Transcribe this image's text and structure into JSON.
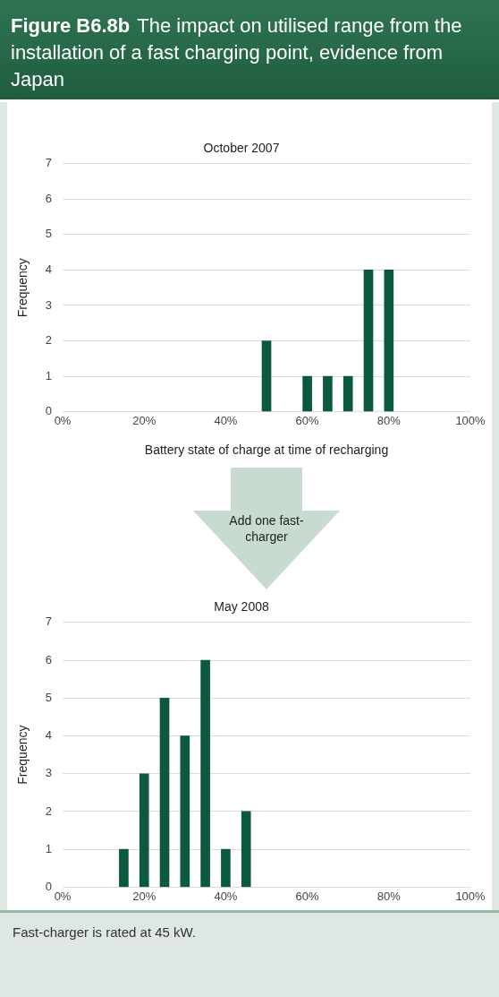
{
  "chart_data": [
    {
      "type": "bar",
      "title": "October 2007",
      "xlabel": "Battery state of charge at time of recharging",
      "ylabel": "Frequency",
      "x": [
        50,
        60,
        65,
        70,
        75,
        80
      ],
      "values": [
        2,
        1,
        1,
        1,
        4,
        4
      ],
      "color": "#0b5a3e",
      "xlim": [
        0,
        100
      ],
      "xticks": [
        {
          "value": 0,
          "label": "0%"
        },
        {
          "value": 20,
          "label": "20%"
        },
        {
          "value": 40,
          "label": "40%"
        },
        {
          "value": 60,
          "label": "60%"
        },
        {
          "value": 80,
          "label": "80%"
        },
        {
          "value": 100,
          "label": "100%"
        }
      ],
      "ylim": [
        0,
        7
      ],
      "yticks": [
        0,
        1,
        2,
        3,
        4,
        5,
        6,
        7
      ],
      "grid": "y",
      "annotations": [
        "Figure B6.8b",
        "The impact on utilised range from the installation of a fast charging point, evidence from Japan"
      ]
    },
    {
      "type": "bar",
      "title": "May 2008",
      "ylabel": "Frequency",
      "x": [
        15,
        20,
        25,
        30,
        35,
        40,
        45
      ],
      "values": [
        1,
        3,
        5,
        4,
        6,
        1,
        2
      ],
      "color": "#0b5a3e",
      "xlim": [
        0,
        100
      ],
      "xticks": [
        {
          "value": 0,
          "label": "0%"
        },
        {
          "value": 20,
          "label": "20%"
        },
        {
          "value": 40,
          "label": "40%"
        },
        {
          "value": 60,
          "label": "60%"
        },
        {
          "value": 80,
          "label": "80%"
        },
        {
          "value": 100,
          "label": "100%"
        }
      ],
      "ylim": [
        0,
        7
      ],
      "yticks": [
        0,
        1,
        2,
        3,
        4,
        5,
        6,
        7
      ],
      "grid": "y",
      "annotations": [
        "Add one fast-charger",
        "Fast-charger is rated at 45 kW."
      ]
    }
  ]
}
